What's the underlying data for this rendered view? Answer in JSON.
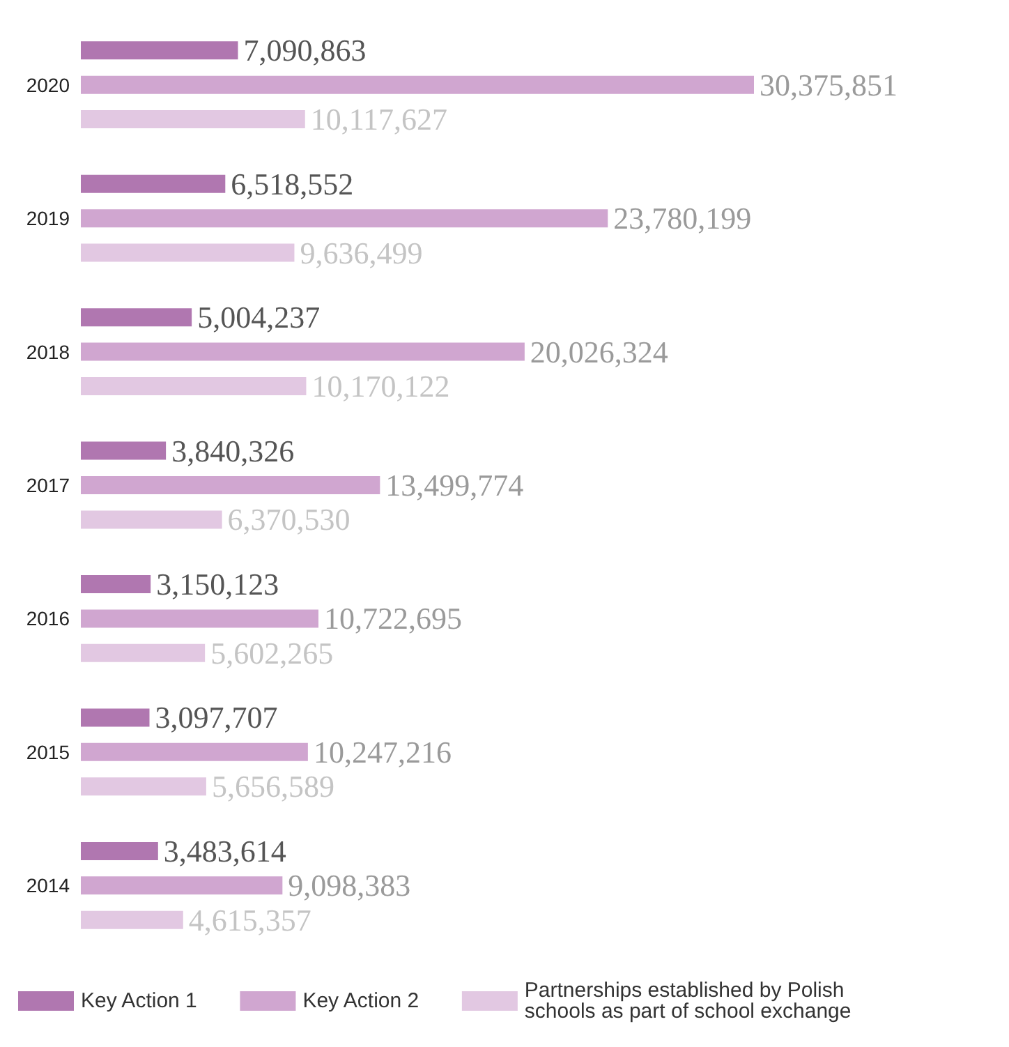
{
  "chart_data": {
    "type": "bar",
    "orientation": "horizontal",
    "categories": [
      "2020",
      "2019",
      "2018",
      "2017",
      "2016",
      "2015",
      "2014"
    ],
    "series": [
      {
        "name": "Key Action 1",
        "color": "#b077b0",
        "values": [
          7090863,
          6518552,
          5004237,
          3840326,
          3150123,
          3097707,
          3483614
        ],
        "value_labels": [
          "7,090,863",
          "6,518,552",
          "5,004,237",
          "3,840,326",
          "3,150,123",
          "3,097,707",
          "3,483,614"
        ]
      },
      {
        "name": "Key Action 2",
        "color": "#d0a6d0",
        "values": [
          30375851,
          23780199,
          20026324,
          13499774,
          10722695,
          10247216,
          9098383
        ],
        "value_labels": [
          "30,375,851",
          "23,780,199",
          "20,026,324",
          "13,499,774",
          "10,722,695",
          "10,247,216",
          "9,098,383"
        ]
      },
      {
        "name": "Partnerships established by Polish schools as part of school exchange",
        "color": "#e2c8e2",
        "values": [
          10117627,
          9636499,
          10170122,
          6370530,
          5602265,
          5656589,
          4615357
        ],
        "value_labels": [
          "10,117,627",
          "9,636,499",
          "10,170,122",
          "6,370,530",
          "5,602,265",
          "5,656,589",
          "4,615,357"
        ]
      }
    ],
    "legend": "bottom"
  }
}
